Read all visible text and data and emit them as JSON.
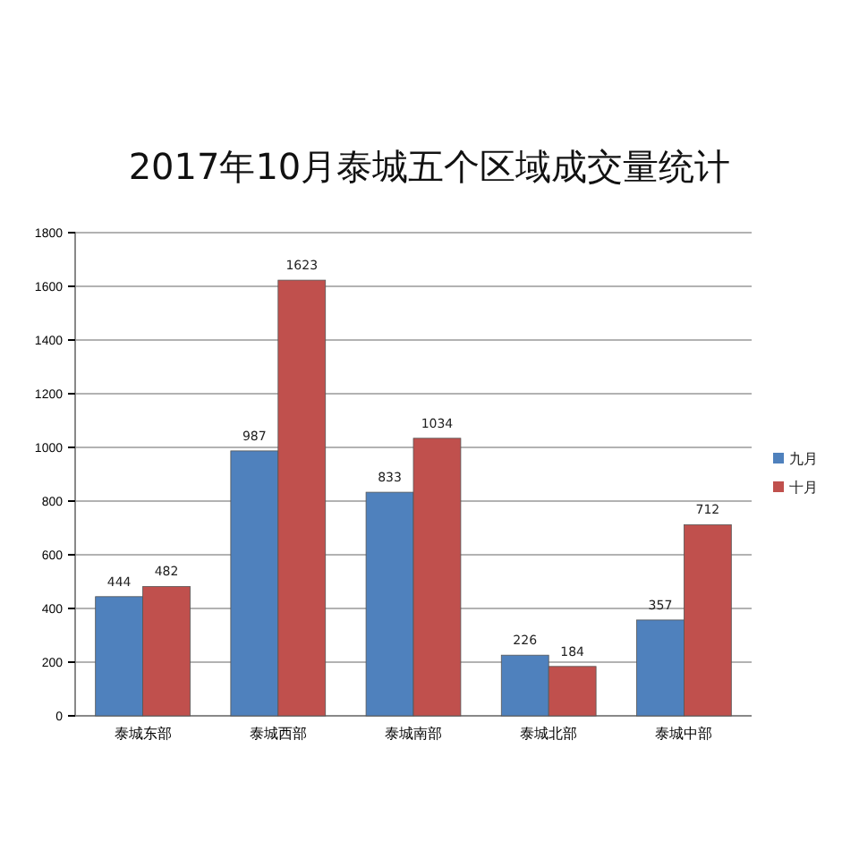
{
  "chart_data": {
    "type": "bar",
    "title": "2017年10月泰城五个区域成交量统计",
    "categories": [
      "泰城东部",
      "泰城西部",
      "泰城南部",
      "泰城北部",
      "泰城中部"
    ],
    "series": [
      {
        "name": "九月",
        "color": "#4f81bd",
        "values": [
          444,
          987,
          833,
          226,
          357
        ]
      },
      {
        "name": "十月",
        "color": "#c0504d",
        "values": [
          482,
          1623,
          1034,
          184,
          712
        ]
      }
    ],
    "ylim": [
      0,
      1800
    ],
    "yticks": [
      0,
      200,
      400,
      600,
      800,
      1000,
      1200,
      1400,
      1600,
      1800
    ],
    "grid": "y",
    "legend": "right",
    "data_labels": true
  }
}
